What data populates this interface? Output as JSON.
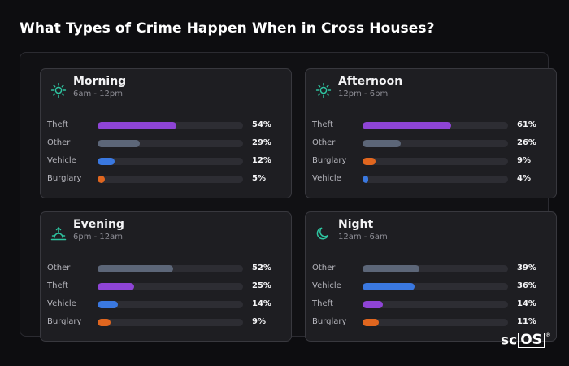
{
  "title": "What Types of Crime Happen When in Cross Houses?",
  "watermark": {
    "sc": "sc",
    "os": "OS",
    "reg": "®"
  },
  "chart_data": {
    "type": "bar",
    "title": "What Types of Crime Happen When in Cross Houses?",
    "xlim": [
      0,
      100
    ],
    "panels": [
      {
        "title": "Morning",
        "subtitle": "6am - 12pm",
        "icon": "sun-icon",
        "rows": [
          {
            "label": "Theft",
            "value": 54,
            "display": "54%",
            "color": "#8e44d6"
          },
          {
            "label": "Other",
            "value": 29,
            "display": "29%",
            "color": "#5c6678"
          },
          {
            "label": "Vehicle",
            "value": 12,
            "display": "12%",
            "color": "#3a78e0"
          },
          {
            "label": "Burglary",
            "value": 5,
            "display": "5%",
            "color": "#e0661f"
          }
        ]
      },
      {
        "title": "Afternoon",
        "subtitle": "12pm - 6pm",
        "icon": "sun-icon",
        "rows": [
          {
            "label": "Theft",
            "value": 61,
            "display": "61%",
            "color": "#8e44d6"
          },
          {
            "label": "Other",
            "value": 26,
            "display": "26%",
            "color": "#5c6678"
          },
          {
            "label": "Burglary",
            "value": 9,
            "display": "9%",
            "color": "#e0661f"
          },
          {
            "label": "Vehicle",
            "value": 4,
            "display": "4%",
            "color": "#3a78e0"
          }
        ]
      },
      {
        "title": "Evening",
        "subtitle": "6pm - 12am",
        "icon": "sunset-icon",
        "rows": [
          {
            "label": "Other",
            "value": 52,
            "display": "52%",
            "color": "#5c6678"
          },
          {
            "label": "Theft",
            "value": 25,
            "display": "25%",
            "color": "#8e44d6"
          },
          {
            "label": "Vehicle",
            "value": 14,
            "display": "14%",
            "color": "#3a78e0"
          },
          {
            "label": "Burglary",
            "value": 9,
            "display": "9%",
            "color": "#e0661f"
          }
        ]
      },
      {
        "title": "Night",
        "subtitle": "12am - 6am",
        "icon": "moon-icon",
        "rows": [
          {
            "label": "Other",
            "value": 39,
            "display": "39%",
            "color": "#5c6678"
          },
          {
            "label": "Vehicle",
            "value": 36,
            "display": "36%",
            "color": "#3a78e0"
          },
          {
            "label": "Theft",
            "value": 14,
            "display": "14%",
            "color": "#8e44d6"
          },
          {
            "label": "Burglary",
            "value": 11,
            "display": "11%",
            "color": "#e0661f"
          }
        ]
      }
    ]
  },
  "colors": {
    "icon_accent": "#2ec4a0",
    "background": "#0d0d10",
    "panel": "#1e1e22"
  }
}
